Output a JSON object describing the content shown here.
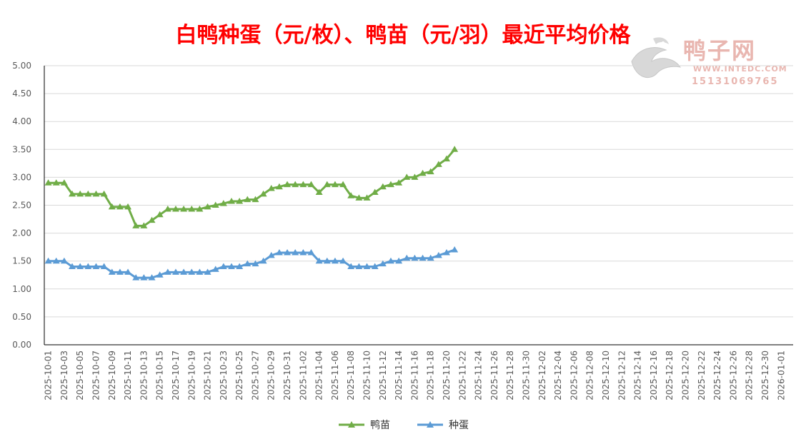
{
  "chart_data": {
    "type": "line",
    "title": "白鸭种蛋（元/枚）、鸭苗（元/羽）最近平均价格",
    "xlabel": "",
    "ylabel": "",
    "ylim": [
      0,
      5
    ],
    "yticks": [
      "0.00",
      "0.50",
      "1.00",
      "1.50",
      "2.00",
      "2.50",
      "3.00",
      "3.50",
      "4.00",
      "4.50",
      "5.00"
    ],
    "x_range": [
      "2025-10-01",
      "2026-01-02"
    ],
    "x_tick_labels": [
      "2025-10-01",
      "2025-10-03",
      "2025-10-05",
      "2025-10-07",
      "2025-10-09",
      "2025-10-11",
      "2025-10-13",
      "2025-10-15",
      "2025-10-17",
      "2025-10-19",
      "2025-10-21",
      "2025-10-23",
      "2025-10-25",
      "2025-10-27",
      "2025-10-29",
      "2025-10-31",
      "2025-11-02",
      "2025-11-04",
      "2025-11-06",
      "2025-11-08",
      "2025-11-10",
      "2025-11-12",
      "2025-11-14",
      "2025-11-16",
      "2025-11-18",
      "2025-11-20",
      "2025-11-22",
      "2025-11-24",
      "2025-11-26",
      "2025-11-28",
      "2025-11-30",
      "2025-12-02",
      "2025-12-04",
      "2025-12-06",
      "2025-12-08",
      "2025-12-10",
      "2025-12-12",
      "2025-12-14",
      "2025-12-16",
      "2025-12-18",
      "2025-12-20",
      "2025-12-22",
      "2025-12-24",
      "2025-12-26",
      "2025-12-28",
      "2025-12-30",
      "2026-01-01"
    ],
    "x": [
      "2025-10-01",
      "2025-10-02",
      "2025-10-03",
      "2025-10-04",
      "2025-10-05",
      "2025-10-06",
      "2025-10-07",
      "2025-10-08",
      "2025-10-09",
      "2025-10-10",
      "2025-10-11",
      "2025-10-12",
      "2025-10-13",
      "2025-10-14",
      "2025-10-15",
      "2025-10-16",
      "2025-10-17",
      "2025-10-18",
      "2025-10-19",
      "2025-10-20",
      "2025-10-21",
      "2025-10-22",
      "2025-10-23",
      "2025-10-24",
      "2025-10-25",
      "2025-10-26",
      "2025-10-27",
      "2025-10-28",
      "2025-10-29",
      "2025-10-30",
      "2025-10-31",
      "2025-11-01",
      "2025-11-02",
      "2025-11-03",
      "2025-11-04",
      "2025-11-05",
      "2025-11-06",
      "2025-11-07",
      "2025-11-08",
      "2025-11-09",
      "2025-11-10",
      "2025-11-11",
      "2025-11-12",
      "2025-11-13",
      "2025-11-14",
      "2025-11-15",
      "2025-11-16",
      "2025-11-17",
      "2025-11-18",
      "2025-11-19",
      "2025-11-20",
      "2025-11-21"
    ],
    "series": [
      {
        "name": "鸭苗",
        "color": "#70ad47",
        "values": [
          2.9,
          2.9,
          2.9,
          2.7,
          2.7,
          2.7,
          2.7,
          2.7,
          2.47,
          2.47,
          2.47,
          2.13,
          2.13,
          2.23,
          2.33,
          2.43,
          2.43,
          2.43,
          2.43,
          2.43,
          2.47,
          2.5,
          2.53,
          2.57,
          2.57,
          2.6,
          2.6,
          2.7,
          2.8,
          2.83,
          2.87,
          2.87,
          2.87,
          2.87,
          2.73,
          2.87,
          2.87,
          2.87,
          2.67,
          2.63,
          2.63,
          2.73,
          2.83,
          2.87,
          2.9,
          3.0,
          3.0,
          3.07,
          3.1,
          3.23,
          3.33,
          3.5
        ]
      },
      {
        "name": "种蛋",
        "color": "#5b9bd5",
        "values": [
          1.5,
          1.5,
          1.5,
          1.4,
          1.4,
          1.4,
          1.4,
          1.4,
          1.3,
          1.3,
          1.3,
          1.2,
          1.2,
          1.2,
          1.25,
          1.3,
          1.3,
          1.3,
          1.3,
          1.3,
          1.3,
          1.35,
          1.4,
          1.4,
          1.4,
          1.45,
          1.45,
          1.5,
          1.6,
          1.65,
          1.65,
          1.65,
          1.65,
          1.65,
          1.5,
          1.5,
          1.5,
          1.5,
          1.4,
          1.4,
          1.4,
          1.4,
          1.45,
          1.5,
          1.5,
          1.55,
          1.55,
          1.55,
          1.55,
          1.6,
          1.65,
          1.7
        ]
      }
    ],
    "grid": true,
    "legend_position": "bottom"
  },
  "watermark": {
    "name": "鸭子网",
    "url": "WWW.INTEDC.COM",
    "phone": "15131069765"
  },
  "legend": {
    "items": [
      {
        "label": "鸭苗",
        "color": "#70ad47"
      },
      {
        "label": "种蛋",
        "color": "#5b9bd5"
      }
    ]
  }
}
